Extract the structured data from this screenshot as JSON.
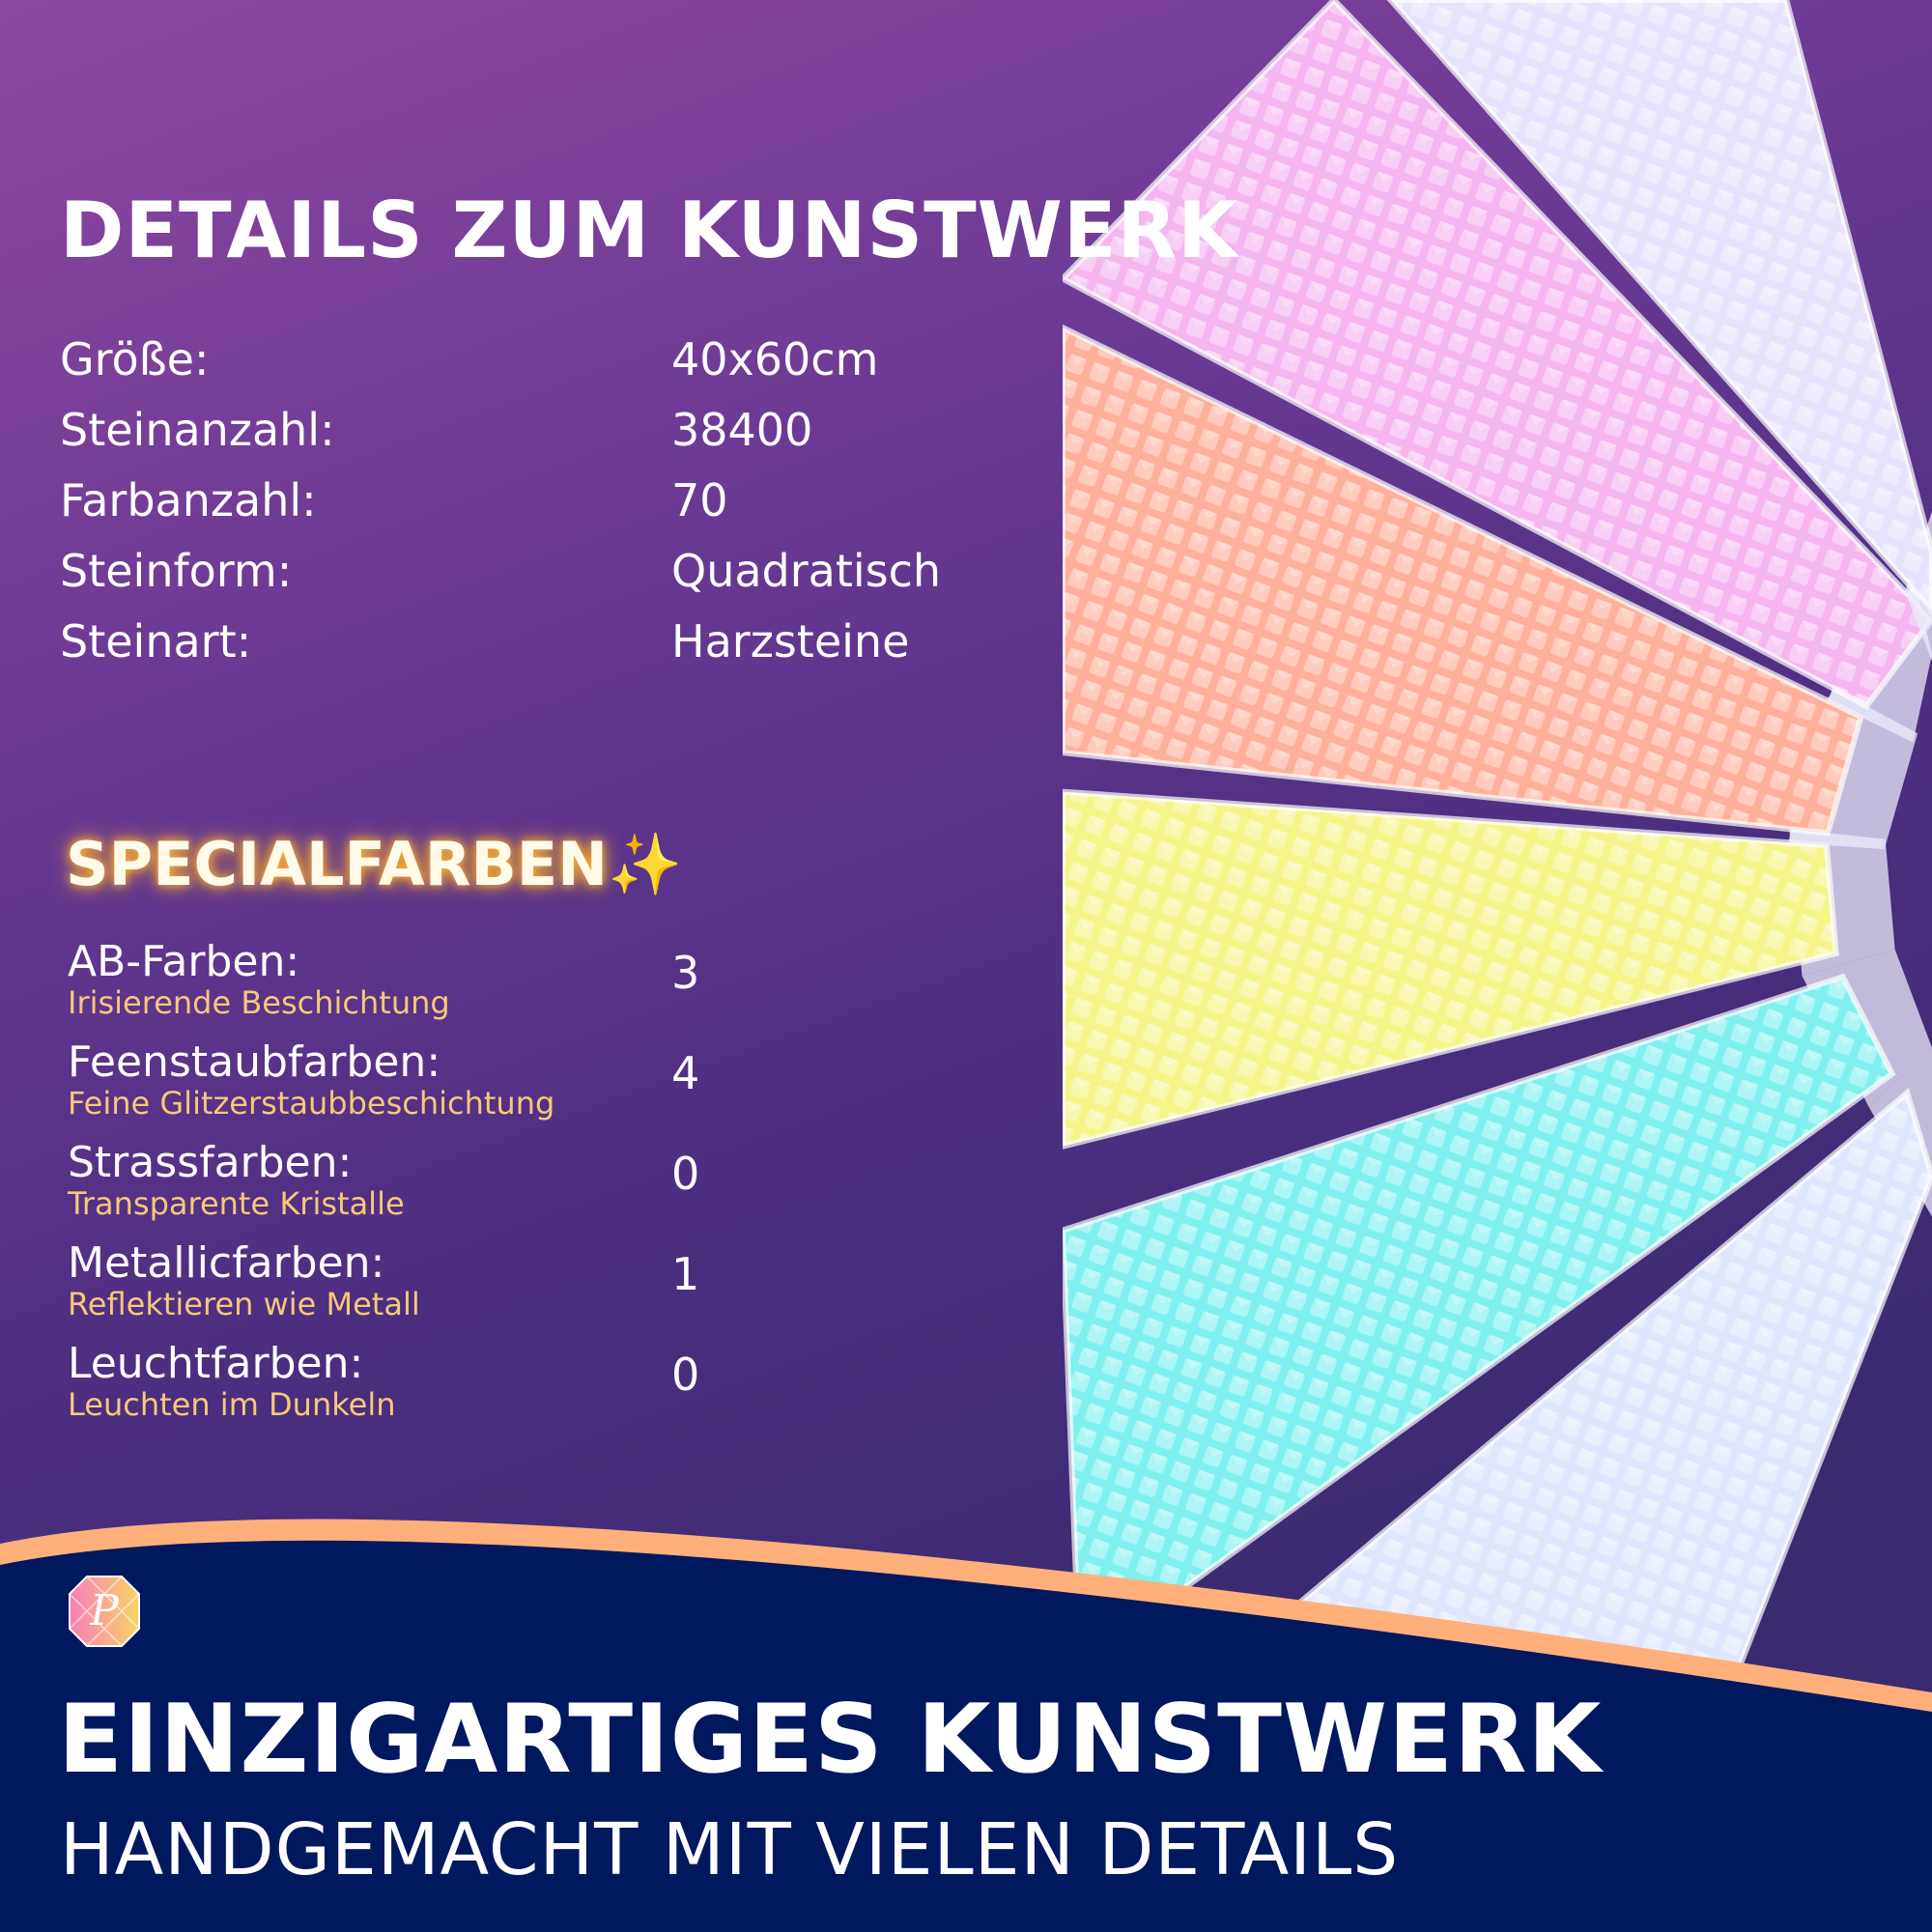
{
  "details": {
    "title": "DETAILS ZUM KUNSTWERK",
    "rows": [
      {
        "label": "Größe:",
        "value": "40x60cm"
      },
      {
        "label": "Steinanzahl:",
        "value": "38400"
      },
      {
        "label": "Farbanzahl:",
        "value": "70"
      },
      {
        "label": "Steinform:",
        "value": "Quadratisch"
      },
      {
        "label": "Steinart:",
        "value": "Harzsteine"
      }
    ]
  },
  "special": {
    "title": "SPECIALFARBEN",
    "icon": "sparkles-icon",
    "sparkle": "✨",
    "rows": [
      {
        "label": "AB-Farben:",
        "sub": "Irisierende Beschichtung",
        "value": "3"
      },
      {
        "label": "Feenstaubfarben:",
        "sub": "Feine Glitzerstaubbeschichtung",
        "value": "4"
      },
      {
        "label": "Strassfarben:",
        "sub": "Transparente Kristalle",
        "value": "0"
      },
      {
        "label": "Metallicfarben:",
        "sub": "Reflektieren wie Metall",
        "value": "1"
      },
      {
        "label": "Leuchtfarben:",
        "sub": "Leuchten im Dunkeln",
        "value": "0"
      }
    ]
  },
  "footer": {
    "headline": "EINZIGARTIGES KUNSTWERK",
    "subline": "HANDGEMACHT MIT VIELEN DETAILS",
    "logo_letter": "P"
  },
  "colors": {
    "navy": "#00185e",
    "accent_orange": "#ffb07a",
    "gold_text": "#f5c97a",
    "bag_colors": [
      "#dfe6ff",
      "#7ff0ee",
      "#f5f58a",
      "#ffb09a",
      "#f5b5ee",
      "#e6e2ff"
    ]
  }
}
